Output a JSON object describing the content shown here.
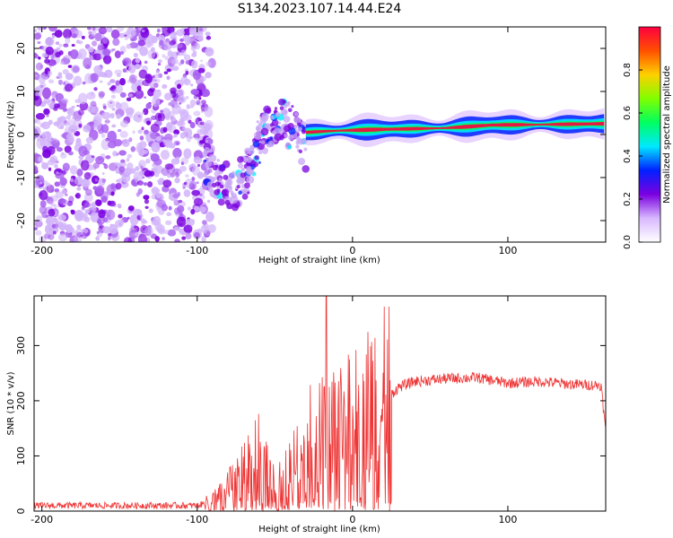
{
  "chart_data": [
    {
      "type": "heatmap",
      "title": "S134.2023.107.14.44.E24",
      "xlabel": "Height of straight line (km)",
      "ylabel": "Frequency (Hz)",
      "xlim": [
        -205,
        163
      ],
      "ylim": [
        -25,
        25
      ],
      "x_ticks": [
        -200,
        -100,
        0,
        100
      ],
      "y_ticks": [
        -20,
        -10,
        0,
        10,
        20
      ],
      "colorbar": {
        "label": "Normalized spectral amplitude",
        "range": [
          0,
          1
        ],
        "ticks": [
          0.0,
          0.2,
          0.4,
          0.6,
          0.8
        ],
        "colors": [
          "#ffffff",
          "#d8b8ff",
          "#7a00e0",
          "#0020ff",
          "#00e8ff",
          "#00ff60",
          "#80ff00",
          "#ffd000",
          "#ff5000",
          "#ff0040"
        ]
      },
      "features": {
        "noise_region_x": [
          -205,
          -95
        ],
        "transition_region_x": [
          -95,
          -30
        ],
        "tone_x": [
          -30,
          163
        ],
        "tone_frequency": [
          {
            "x": -30,
            "y": 0.5
          },
          {
            "x": -15,
            "y": 0.8
          },
          {
            "x": 0,
            "y": 1.0
          },
          {
            "x": 20,
            "y": 1.2
          },
          {
            "x": 60,
            "y": 1.5
          },
          {
            "x": 90,
            "y": 2.2
          },
          {
            "x": 120,
            "y": 2.3
          },
          {
            "x": 163,
            "y": 2.5
          }
        ]
      }
    },
    {
      "type": "line",
      "xlabel": "Height of straight line (km)",
      "ylabel": "SNR (10 * v/v)",
      "xlim": [
        -205,
        163
      ],
      "ylim": [
        0,
        390
      ],
      "x_ticks": [
        -200,
        -100,
        0,
        100
      ],
      "y_ticks": [
        0,
        100,
        200,
        300
      ],
      "series": [
        {
          "name": "SNR",
          "color": "#ee3333",
          "envelope": [
            {
              "x": -205,
              "y": 10
            },
            {
              "x": -150,
              "y": 10
            },
            {
              "x": -100,
              "y": 10
            },
            {
              "x": -90,
              "y": 18
            },
            {
              "x": -80,
              "y": 40
            },
            {
              "x": -70,
              "y": 65
            },
            {
              "x": -60,
              "y": 95
            },
            {
              "x": -50,
              "y": 40
            },
            {
              "x": -40,
              "y": 80
            },
            {
              "x": -30,
              "y": 120
            },
            {
              "x": -20,
              "y": 130
            },
            {
              "x": -10,
              "y": 150
            },
            {
              "x": 0,
              "y": 160
            },
            {
              "x": 10,
              "y": 175
            },
            {
              "x": 20,
              "y": 200
            },
            {
              "x": 30,
              "y": 225
            },
            {
              "x": 40,
              "y": 235
            },
            {
              "x": 60,
              "y": 240
            },
            {
              "x": 80,
              "y": 242
            },
            {
              "x": 100,
              "y": 232
            },
            {
              "x": 120,
              "y": 235
            },
            {
              "x": 140,
              "y": 230
            },
            {
              "x": 160,
              "y": 228
            },
            {
              "x": 163,
              "y": 145
            }
          ],
          "peak": {
            "x": -17,
            "y": 390
          }
        }
      ]
    }
  ]
}
